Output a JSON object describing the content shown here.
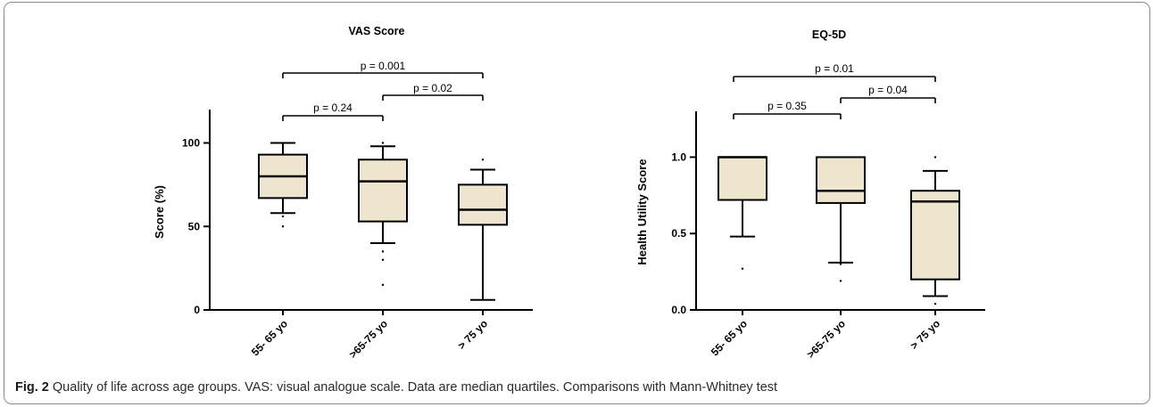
{
  "caption": {
    "label": "Fig. 2",
    "text": "Quality of life across age groups. VAS: visual analogue scale. Data are median quartiles. Comparisons with Mann-Whitney test"
  },
  "colors": {
    "box_fill": "#ede5cd",
    "line": "#000000",
    "frame_border": "#8a8a8a"
  },
  "chart_data": [
    {
      "type": "box",
      "title": "VAS  Score",
      "xlabel": "",
      "ylabel": "Score (%)",
      "ylim": [
        0,
        120
      ],
      "yticks": [
        0,
        50,
        100
      ],
      "grid": false,
      "categories": [
        "55- 65 yo",
        ">65-75 yo",
        "> 75 yo"
      ],
      "boxes": [
        {
          "category": "55- 65 yo",
          "whisker_low": 58,
          "q1": 67,
          "median": 80,
          "q3": 93,
          "whisker_high": 100,
          "outliers": [
            56,
            50
          ]
        },
        {
          "category": ">65-75 yo",
          "whisker_low": 40,
          "q1": 53,
          "median": 77,
          "q3": 90,
          "whisker_high": 98,
          "outliers": [
            100,
            35,
            30,
            15
          ]
        },
        {
          "category": "> 75 yo",
          "whisker_low": 6,
          "q1": 51,
          "median": 60,
          "q3": 75,
          "whisker_high": 84,
          "outliers": [
            90
          ]
        }
      ],
      "comparisons": [
        {
          "from": 0,
          "to": 2,
          "label": "p = 0.001"
        },
        {
          "from": 1,
          "to": 2,
          "label": "p = 0.02"
        },
        {
          "from": 0,
          "to": 1,
          "label": "p  = 0.24"
        }
      ]
    },
    {
      "type": "box",
      "title": "EQ-5D",
      "xlabel": "",
      "ylabel": "Health  Utility  Score",
      "ylim": [
        0,
        1.3
      ],
      "yticks": [
        0.0,
        0.5,
        1.0
      ],
      "ytick_labels": [
        "0.0",
        "0.5",
        "1.0"
      ],
      "grid": false,
      "categories": [
        "55- 65 yo",
        ">65-75 yo",
        "> 75 yo"
      ],
      "boxes": [
        {
          "category": "55- 65 yo",
          "whisker_low": 0.48,
          "q1": 0.72,
          "median": 1.0,
          "q3": 1.0,
          "whisker_high": 1.0,
          "outliers": [
            0.27
          ]
        },
        {
          "category": ">65-75 yo",
          "whisker_low": 0.31,
          "q1": 0.7,
          "median": 0.78,
          "q3": 1.0,
          "whisker_high": 1.0,
          "outliers": [
            0.3,
            0.19
          ]
        },
        {
          "category": "> 75 yo",
          "whisker_low": 0.09,
          "q1": 0.2,
          "median": 0.71,
          "q3": 0.78,
          "whisker_high": 0.91,
          "outliers": [
            1.0,
            0.04
          ]
        }
      ],
      "comparisons": [
        {
          "from": 0,
          "to": 2,
          "label": "p = 0.01"
        },
        {
          "from": 1,
          "to": 2,
          "label": "p = 0.04"
        },
        {
          "from": 0,
          "to": 1,
          "label": "p = 0.35"
        }
      ]
    }
  ]
}
